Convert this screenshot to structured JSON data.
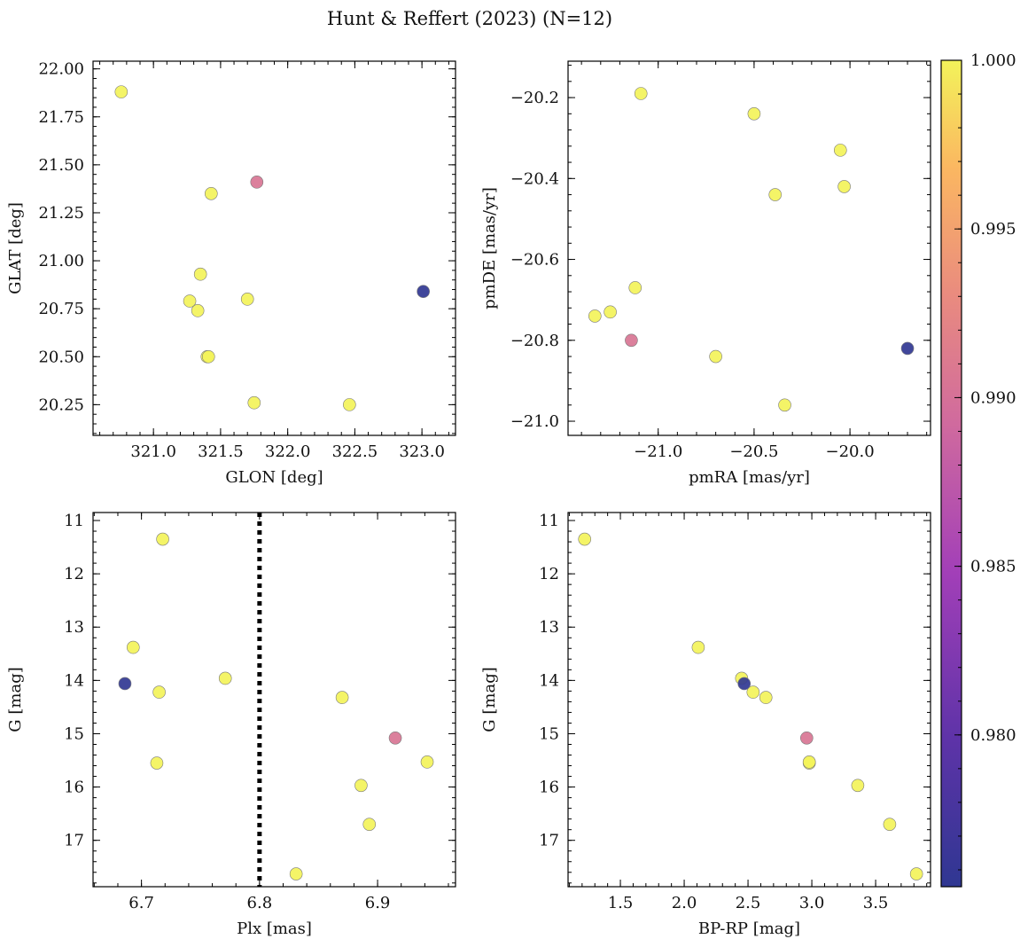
{
  "title": "Hunt & Reffert (2023) (N=12)",
  "colorbar": {
    "range": [
      0.9755,
      1.0
    ],
    "ticks": [
      0.98,
      0.985,
      0.99,
      0.995,
      1.0
    ],
    "tick_labels": [
      "0.980",
      "0.985",
      "0.990",
      "0.995",
      "1.000"
    ],
    "colormap": "plasma"
  },
  "chart_data": [
    {
      "type": "scatter",
      "xlabel": "GLON [deg]",
      "ylabel": "GLAT [deg]",
      "xlim": [
        320.55,
        323.25
      ],
      "ylim": [
        20.09,
        22.04
      ],
      "invert_y": false,
      "xticks": [
        321.0,
        321.5,
        322.0,
        322.5,
        323.0
      ],
      "xtick_labels": [
        "321.0",
        "321.5",
        "322.0",
        "322.5",
        "323.0"
      ],
      "yticks": [
        20.25,
        20.5,
        20.75,
        21.0,
        21.25,
        21.5,
        21.75,
        22.0
      ],
      "ytick_labels": [
        "20.25",
        "20.50",
        "20.75",
        "21.00",
        "21.25",
        "21.50",
        "21.75",
        "22.00"
      ],
      "x": [
        320.76,
        321.27,
        321.33,
        321.35,
        321.4,
        321.41,
        321.43,
        321.7,
        321.75,
        321.77,
        322.46,
        323.01
      ],
      "y": [
        21.88,
        20.79,
        20.74,
        20.93,
        20.5,
        20.5,
        21.35,
        20.8,
        20.26,
        21.41,
        20.25,
        20.84
      ],
      "c": [
        1.0,
        1.0,
        1.0,
        1.0,
        1.0,
        1.0,
        1.0,
        1.0,
        1.0,
        0.9905,
        1.0,
        0.9757
      ]
    },
    {
      "type": "scatter",
      "xlabel": "pmRA [mas/yr]",
      "ylabel": "pmDE [mas/yr]",
      "xlim": [
        -21.47,
        -19.58
      ],
      "ylim": [
        -21.035,
        -20.11
      ],
      "invert_y": false,
      "xticks": [
        -21.0,
        -20.5,
        -20.0
      ],
      "xtick_labels": [
        "−21.0",
        "−20.5",
        "−20.0"
      ],
      "yticks": [
        -21.0,
        -20.8,
        -20.6,
        -20.4,
        -20.2
      ],
      "ytick_labels": [
        "−21.0",
        "−20.8",
        "−20.6",
        "−20.4",
        "−20.2"
      ],
      "x": [
        -21.33,
        -21.25,
        -21.14,
        -21.12,
        -21.09,
        -20.7,
        -20.5,
        -20.39,
        -20.34,
        -20.05,
        -20.03,
        -19.7
      ],
      "y": [
        -20.74,
        -20.73,
        -20.8,
        -20.67,
        -20.19,
        -20.84,
        -20.24,
        -20.44,
        -20.96,
        -20.33,
        -20.42,
        -20.82
      ],
      "c": [
        1.0,
        1.0,
        0.9905,
        1.0,
        1.0,
        1.0,
        1.0,
        1.0,
        1.0,
        1.0,
        1.0,
        0.9757
      ]
    },
    {
      "type": "scatter",
      "xlabel": "Plx [mas]",
      "ylabel": "G [mag]",
      "xlim": [
        6.659,
        6.966
      ],
      "ylim": [
        10.85,
        17.87
      ],
      "invert_y": true,
      "xticks": [
        6.7,
        6.8,
        6.9
      ],
      "xtick_labels": [
        "6.7",
        "6.8",
        "6.9"
      ],
      "yticks": [
        11,
        12,
        13,
        14,
        15,
        16,
        17
      ],
      "ytick_labels": [
        "11",
        "12",
        "13",
        "14",
        "15",
        "16",
        "17"
      ],
      "vline": 6.8,
      "x": [
        6.686,
        6.693,
        6.713,
        6.715,
        6.718,
        6.771,
        6.831,
        6.87,
        6.886,
        6.893,
        6.915,
        6.942
      ],
      "y": [
        14.06,
        13.38,
        15.55,
        14.22,
        11.35,
        13.96,
        17.63,
        14.32,
        15.97,
        16.7,
        15.08,
        15.53
      ],
      "c": [
        0.9757,
        1.0,
        1.0,
        1.0,
        1.0,
        1.0,
        1.0,
        1.0,
        1.0,
        1.0,
        0.9905,
        1.0
      ]
    },
    {
      "type": "scatter",
      "xlabel": "BP-RP [mag]",
      "ylabel": "G [mag]",
      "xlim": [
        1.09,
        3.93
      ],
      "ylim": [
        10.85,
        17.87
      ],
      "invert_y": true,
      "xticks": [
        1.5,
        2.0,
        2.5,
        3.0,
        3.5
      ],
      "xtick_labels": [
        "1.5",
        "2.0",
        "2.5",
        "3.0",
        "3.5"
      ],
      "yticks": [
        11,
        12,
        13,
        14,
        15,
        16,
        17
      ],
      "ytick_labels": [
        "11",
        "12",
        "13",
        "14",
        "15",
        "16",
        "17"
      ],
      "x": [
        1.22,
        2.11,
        2.45,
        2.47,
        2.54,
        2.64,
        2.96,
        2.98,
        2.98,
        3.36,
        3.61,
        3.82
      ],
      "y": [
        11.35,
        13.38,
        13.96,
        14.06,
        14.22,
        14.32,
        15.08,
        15.55,
        15.53,
        15.97,
        16.7,
        17.63
      ],
      "c": [
        1.0,
        1.0,
        1.0,
        0.9757,
        1.0,
        1.0,
        0.9905,
        1.0,
        1.0,
        1.0,
        1.0,
        1.0
      ]
    }
  ]
}
